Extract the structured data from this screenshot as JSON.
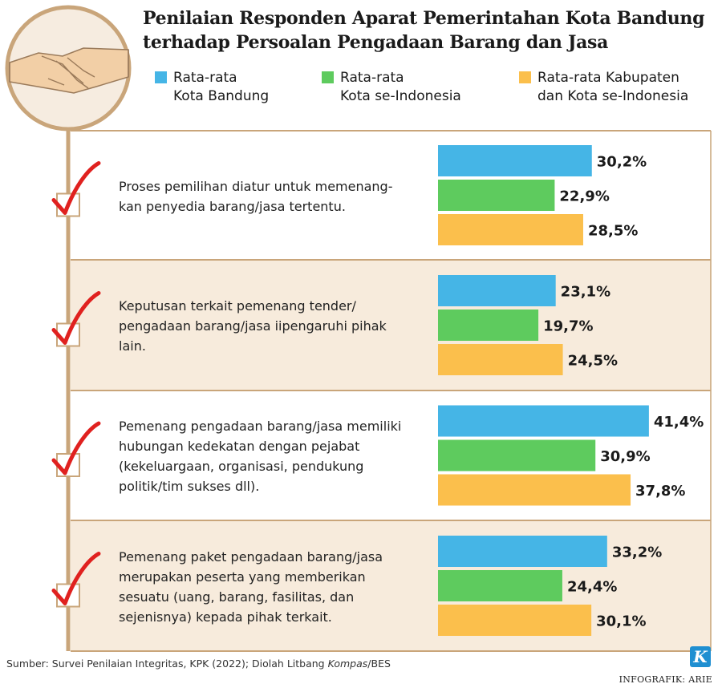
{
  "title": [
    "Penilaian Responden Aparat Pemerintahan Kota Bandung",
    "terhadap Persoalan Pengadaan Barang dan Jasa"
  ],
  "legend": [
    {
      "lines": [
        "Rata-rata",
        "Kota Bandung"
      ],
      "color": "#45b5e6"
    },
    {
      "lines": [
        "Rata-rata",
        "Kota se-Indonesia"
      ],
      "color": "#5ecb5e"
    },
    {
      "lines": [
        "Rata-rata Kabupaten",
        "dan Kota se-Indonesia"
      ],
      "color": "#fbbf4c"
    }
  ],
  "chart_data": {
    "type": "bar",
    "orientation": "horizontal",
    "categories": [
      [
        "Proses pemilihan diatur untuk memenang-",
        "kan penyedia barang/jasa tertentu."
      ],
      [
        "Keputusan terkait pemenang tender/",
        "pengadaan barang/jasa iipengaruhi pihak",
        "lain."
      ],
      [
        "Pemenang pengadaan barang/jasa memiliki",
        "hubungan kedekatan dengan pejabat",
        "(kekeluargaan, organisasi, pendukung",
        "politik/tim sukses dll)."
      ],
      [
        "Pemenang paket pengadaan barang/jasa",
        "merupakan peserta yang memberikan",
        "sesuatu (uang, barang, fasilitas, dan",
        "sejenisnya) kepada pihak terkait."
      ]
    ],
    "series": [
      {
        "name": "Rata-rata Kota Bandung",
        "color": "#45b5e6",
        "values": [
          30.2,
          23.1,
          41.4,
          33.2
        ],
        "labels": [
          "30,2%",
          "23,1%",
          "41,4%",
          "33,2%"
        ]
      },
      {
        "name": "Rata-rata Kota se-Indonesia",
        "color": "#5ecb5e",
        "values": [
          22.9,
          19.7,
          30.9,
          24.4
        ],
        "labels": [
          "22,9%",
          "19,7%",
          "30,9%",
          "24,4%"
        ]
      },
      {
        "name": "Rata-rata Kabupaten dan Kota se-Indonesia",
        "color": "#fbbf4c",
        "values": [
          28.5,
          24.5,
          37.8,
          30.1
        ],
        "labels": [
          "28,5%",
          "24,5%",
          "37,8%",
          "30,1%"
        ]
      }
    ],
    "unit": "%",
    "row_backgrounds": [
      "#ffffff",
      "#f7ebdc",
      "#ffffff",
      "#f7ebdc"
    ]
  },
  "colors": {
    "accent_line": "#c9a57a",
    "check": "#e0211f"
  },
  "footer": {
    "source_prefix": "Sumber: Survei Penilaian Integritas, KPK (2022); Diolah Litbang ",
    "source_italic": "Kompas",
    "source_suffix": "/BES",
    "credit": "INFOGRAFIK: ARIE",
    "logo_letter": "K"
  }
}
